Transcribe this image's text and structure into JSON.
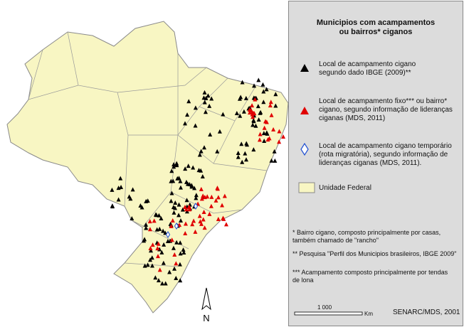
{
  "title": [
    "Municipios com acampamentos",
    "ou bairros* ciganos"
  ],
  "legend": {
    "items": [
      {
        "lines": [
          "Local de acampamento cigano",
          "segundo dado IBGE (2009)**"
        ]
      },
      {
        "lines": [
          "Local de acampamento fixo*** ou bairro*",
          "cigano, segundo informação de lideranças",
          "ciganas (MDS, 2011)"
        ]
      },
      {
        "lines": [
          "Local de acampamento cigano temporário",
          "(rota migratória), segundo informação de",
          "lideranças ciganas (MDS, 2011)."
        ]
      },
      {
        "lines": [
          "Unidade Federal"
        ]
      }
    ]
  },
  "notes": [
    [
      "* Bairro cigano, composto principalmente por casas,",
      "também chamado de \"rancho\""
    ],
    [
      "** Pesquisa \"Perfil dos Municipios brasileiros, IBGE 2009\""
    ],
    [
      "*** Acampamento composto principalmente por tendas",
      "de lona"
    ]
  ],
  "scale": {
    "label": "1 000",
    "unit": "Km"
  },
  "credit": "SENARC/MDS, 2001",
  "north": "N"
}
